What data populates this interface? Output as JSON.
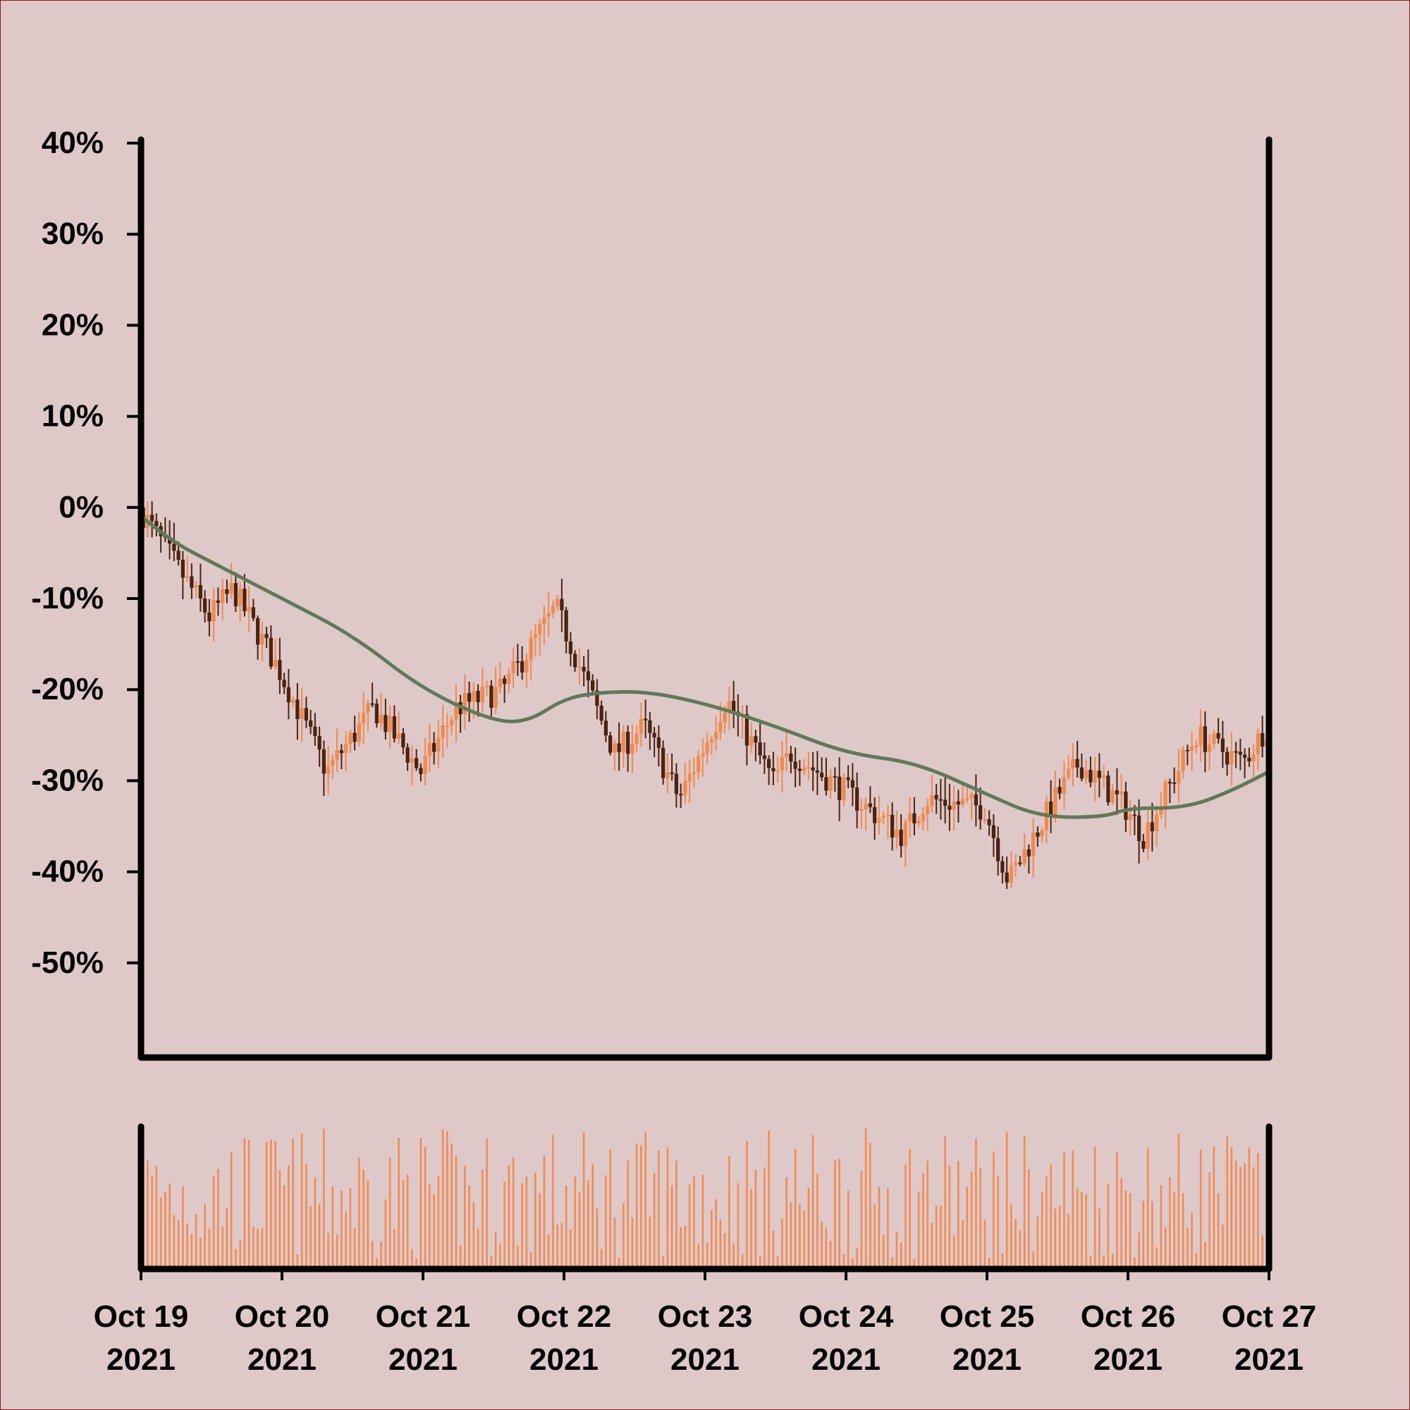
{
  "colors": {
    "background": "#dfc8c8",
    "frame": "#8a1c1c",
    "axis": "#000000",
    "up_candle": "#ef8a50",
    "down_candle": "#4a2410",
    "moving_average": "#5f7a58",
    "volume": "#ef8a50"
  },
  "chart_data": {
    "type": "candlestick",
    "title": "",
    "xlabel": "",
    "ylabel": "",
    "y_tick_labels": [
      "40%",
      "30%",
      "20%",
      "10%",
      "0%",
      "-10%",
      "-20%",
      "-30%",
      "-40%",
      "-50%"
    ],
    "y_tick_values": [
      40,
      30,
      20,
      10,
      0,
      -10,
      -20,
      -30,
      -40,
      -50
    ],
    "ylim": [
      -60,
      40
    ],
    "x_tick_labels": [
      {
        "day": "Oct 19",
        "year": "2021"
      },
      {
        "day": "Oct 20",
        "year": "2021"
      },
      {
        "day": "Oct 21",
        "year": "2021"
      },
      {
        "day": "Oct 22",
        "year": "2021"
      },
      {
        "day": "Oct 23",
        "year": "2021"
      },
      {
        "day": "Oct 24",
        "year": "2021"
      },
      {
        "day": "Oct 25",
        "year": "2021"
      },
      {
        "day": "Oct 26",
        "year": "2021"
      },
      {
        "day": "Oct 27",
        "year": "2021"
      }
    ],
    "x_tick_dates": [
      "2021-10-19",
      "2021-10-20",
      "2021-10-21",
      "2021-10-22",
      "2021-10-23",
      "2021-10-24",
      "2021-10-25",
      "2021-10-26",
      "2021-10-27"
    ],
    "xlim": [
      "2021-10-19",
      "2021-10-27"
    ],
    "grid": false,
    "price_close_path": [
      {
        "t": "2021-10-19 00:00",
        "v": 0
      },
      {
        "t": "2021-10-19 12:00",
        "v": -12
      },
      {
        "t": "2021-10-19 16:00",
        "v": -9
      },
      {
        "t": "2021-10-20 00:00",
        "v": -18
      },
      {
        "t": "2021-10-20 08:00",
        "v": -29
      },
      {
        "t": "2021-10-20 16:00",
        "v": -22
      },
      {
        "t": "2021-10-21 00:00",
        "v": -29
      },
      {
        "t": "2021-10-21 06:00",
        "v": -22
      },
      {
        "t": "2021-10-21 14:00",
        "v": -20
      },
      {
        "t": "2021-10-21 23:00",
        "v": -11
      },
      {
        "t": "2021-10-22 09:00",
        "v": -27
      },
      {
        "t": "2021-10-22 14:00",
        "v": -24
      },
      {
        "t": "2021-10-22 20:00",
        "v": -32
      },
      {
        "t": "2021-10-23 04:00",
        "v": -21
      },
      {
        "t": "2021-10-23 12:00",
        "v": -30
      },
      {
        "t": "2021-10-23 15:00",
        "v": -27
      },
      {
        "t": "2021-10-24 00:00",
        "v": -31
      },
      {
        "t": "2021-10-24 10:00",
        "v": -36
      },
      {
        "t": "2021-10-24 14:00",
        "v": -32
      },
      {
        "t": "2021-10-25 00:00",
        "v": -33
      },
      {
        "t": "2021-10-25 04:00",
        "v": -41
      },
      {
        "t": "2021-10-25 12:00",
        "v": -32
      },
      {
        "t": "2021-10-25 16:00",
        "v": -28
      },
      {
        "t": "2021-10-26 00:00",
        "v": -33
      },
      {
        "t": "2021-10-26 03:00",
        "v": -36
      },
      {
        "t": "2021-10-26 12:00",
        "v": -25
      },
      {
        "t": "2021-10-26 20:00",
        "v": -28
      },
      {
        "t": "2021-10-27 00:00",
        "v": -24
      }
    ],
    "moving_average": [
      {
        "t": "2021-10-19 00:00",
        "v": -1
      },
      {
        "t": "2021-10-19 06:00",
        "v": -4
      },
      {
        "t": "2021-10-19 12:00",
        "v": -6
      },
      {
        "t": "2021-10-20 00:00",
        "v": -10
      },
      {
        "t": "2021-10-20 12:00",
        "v": -14
      },
      {
        "t": "2021-10-21 00:00",
        "v": -20
      },
      {
        "t": "2021-10-21 12:00",
        "v": -23.5
      },
      {
        "t": "2021-10-21 18:00",
        "v": -23.5
      },
      {
        "t": "2021-10-22 00:00",
        "v": -21
      },
      {
        "t": "2021-10-22 06:00",
        "v": -20.3
      },
      {
        "t": "2021-10-22 14:00",
        "v": -20.2
      },
      {
        "t": "2021-10-23 00:00",
        "v": -21.5
      },
      {
        "t": "2021-10-23 12:00",
        "v": -24
      },
      {
        "t": "2021-10-24 00:00",
        "v": -27
      },
      {
        "t": "2021-10-24 12:00",
        "v": -28
      },
      {
        "t": "2021-10-25 00:00",
        "v": -31.5
      },
      {
        "t": "2021-10-25 09:00",
        "v": -34
      },
      {
        "t": "2021-10-25 20:00",
        "v": -34
      },
      {
        "t": "2021-10-26 00:00",
        "v": -33
      },
      {
        "t": "2021-10-26 10:00",
        "v": -33
      },
      {
        "t": "2021-10-26 18:00",
        "v": -31
      },
      {
        "t": "2021-10-27 00:00",
        "v": -29
      }
    ],
    "bars_per_day": 32,
    "volume_range": [
      0.05,
      1.0
    ]
  }
}
